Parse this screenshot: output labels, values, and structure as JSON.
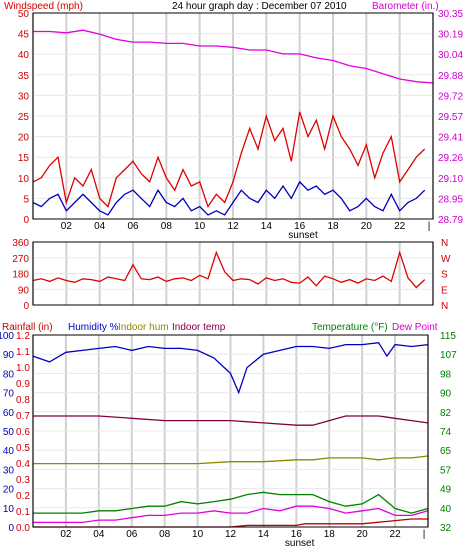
{
  "header": {
    "title": "24 hour graph day : December 07 2010",
    "left_label": "Windspeed (mph)",
    "right_label": "Barometer (in.)"
  },
  "colors": {
    "wind_speed": "#e00000",
    "wind_avg": "#0000c0",
    "barometer": "#e000e0",
    "direction": "#e00000",
    "humidity": "#0000c0",
    "indoor_hum": "#8a8a00",
    "indoor_temp": "#800040",
    "temperature": "#008000",
    "dew_point": "#e000e0",
    "rainfall": "#c00000",
    "grid": "#d0d0d0",
    "frame": "#000000"
  },
  "chart_data": [
    {
      "type": "line",
      "panel": "wind_barometer",
      "x_ticks": [
        "02",
        "04",
        "06",
        "08",
        "10",
        "12",
        "14",
        "16",
        "18",
        "20",
        "22"
      ],
      "x_extra_label": "sunset",
      "xlim": [
        0,
        24
      ],
      "left_axis": {
        "label": "Windspeed (mph)",
        "ticks": [
          "0",
          "5",
          "10",
          "15",
          "20",
          "25",
          "30",
          "35",
          "40",
          "45",
          "50"
        ],
        "lim": [
          0,
          50
        ]
      },
      "right_axis": {
        "label": "Barometer (in.)",
        "ticks": [
          "28.79",
          "28.95",
          "29.10",
          "29.26",
          "29.41",
          "29.57",
          "29.72",
          "29.88",
          "30.04",
          "30.19",
          "30.35"
        ],
        "lim": [
          28.79,
          30.35
        ]
      },
      "series": [
        {
          "key": "wind_speed",
          "axis": "left",
          "x": [
            0,
            0.5,
            1,
            1.5,
            2,
            2.5,
            3,
            3.5,
            4,
            4.5,
            5,
            5.5,
            6,
            6.5,
            7,
            7.5,
            8,
            8.5,
            9,
            9.5,
            10,
            10.5,
            11,
            11.5,
            12,
            12.5,
            13,
            13.5,
            14,
            14.5,
            15,
            15.5,
            16,
            16.5,
            17,
            17.5,
            18,
            18.5,
            19,
            19.5,
            20,
            20.5,
            21,
            21.5,
            22,
            22.5,
            23,
            23.5
          ],
          "values": [
            9,
            10,
            13,
            15,
            4,
            10,
            8,
            12,
            5,
            3,
            10,
            12,
            14,
            11,
            9,
            15,
            10,
            7,
            12,
            8,
            9,
            3,
            6,
            4,
            9,
            16,
            22,
            17,
            25,
            19,
            22,
            14,
            26,
            20,
            24,
            17,
            25,
            20,
            17,
            13,
            18,
            10,
            16,
            20,
            9,
            12,
            15,
            17
          ]
        },
        {
          "key": "wind_avg",
          "axis": "left",
          "x": [
            0,
            0.5,
            1,
            1.5,
            2,
            2.5,
            3,
            3.5,
            4,
            4.5,
            5,
            5.5,
            6,
            6.5,
            7,
            7.5,
            8,
            8.5,
            9,
            9.5,
            10,
            10.5,
            11,
            11.5,
            12,
            12.5,
            13,
            13.5,
            14,
            14.5,
            15,
            15.5,
            16,
            16.5,
            17,
            17.5,
            18,
            18.5,
            19,
            19.5,
            20,
            20.5,
            21,
            21.5,
            22,
            22.5,
            23,
            23.5
          ],
          "values": [
            4,
            3,
            5,
            6,
            2,
            4,
            6,
            4,
            2,
            1,
            4,
            6,
            7,
            5,
            3,
            7,
            4,
            3,
            5,
            2,
            3,
            1,
            2,
            1,
            4,
            7,
            5,
            4,
            7,
            5,
            8,
            5,
            9,
            7,
            8,
            6,
            7,
            5,
            2,
            3,
            5,
            3,
            2,
            6,
            2,
            4,
            5,
            7
          ]
        },
        {
          "key": "barometer",
          "axis": "right",
          "x": [
            0,
            1,
            2,
            3,
            4,
            5,
            6,
            7,
            8,
            9,
            10,
            11,
            12,
            13,
            14,
            15,
            16,
            17,
            18,
            19,
            20,
            21,
            22,
            23,
            24
          ],
          "values": [
            30.21,
            30.21,
            30.2,
            30.22,
            30.19,
            30.15,
            30.13,
            30.13,
            30.12,
            30.12,
            30.1,
            30.1,
            30.09,
            30.07,
            30.07,
            30.04,
            30.04,
            30.01,
            29.99,
            29.95,
            29.93,
            29.89,
            29.85,
            29.83,
            29.82
          ]
        }
      ]
    },
    {
      "type": "line",
      "panel": "wind_direction",
      "xlim": [
        0,
        24
      ],
      "left_axis": {
        "ticks": [
          "0",
          "90",
          "180",
          "270",
          "360"
        ],
        "lim": [
          0,
          360
        ]
      },
      "right_axis": {
        "ticks": [
          "N",
          "E",
          "S",
          "W",
          "N"
        ]
      },
      "series": [
        {
          "key": "direction",
          "axis": "left",
          "x": [
            0,
            0.5,
            1,
            1.5,
            2,
            2.5,
            3,
            3.5,
            4,
            4.5,
            5,
            5.5,
            6,
            6.5,
            7,
            7.5,
            8,
            8.5,
            9,
            9.5,
            10,
            10.5,
            11,
            11.5,
            12,
            12.5,
            13,
            13.5,
            14,
            14.5,
            15,
            15.5,
            16,
            16.5,
            17,
            17.5,
            18,
            18.5,
            19,
            19.5,
            20,
            20.5,
            21,
            21.5,
            22,
            22.5,
            23,
            23.5
          ],
          "values": [
            140,
            150,
            135,
            155,
            140,
            130,
            150,
            145,
            135,
            160,
            150,
            140,
            230,
            150,
            145,
            160,
            135,
            150,
            155,
            140,
            170,
            150,
            300,
            190,
            140,
            150,
            145,
            120,
            155,
            140,
            150,
            130,
            125,
            160,
            110,
            165,
            150,
            130,
            145,
            125,
            150,
            140,
            165,
            135,
            300,
            155,
            100,
            145
          ]
        }
      ]
    },
    {
      "type": "line",
      "panel": "temperature_humidity",
      "header": {
        "rainfall": "Rainfall (in)",
        "humidity": "Humidity %",
        "indoor_hum": "Indoor hum",
        "indoor_temp": "Indoor temp",
        "temperature": "Temperature (°F)",
        "dew_point": "Dew Point"
      },
      "x_ticks": [
        "02",
        "04",
        "06",
        "08",
        "10",
        "12",
        "14",
        "16",
        "18",
        "20",
        "22"
      ],
      "x_extra_label": "sunset",
      "xlim": [
        0,
        24
      ],
      "rain_axis": {
        "ticks": [
          "0.0",
          "0.1",
          "0.2",
          "0.3",
          "0.4",
          "0.5",
          "0.6",
          "0.7",
          "0.8",
          "0.9",
          "1.0",
          "1.1",
          "1.2"
        ]
      },
      "humidity_axis": {
        "ticks": [
          "0",
          "10",
          "20",
          "30",
          "40",
          "50",
          "60",
          "70",
          "80",
          "90",
          "100"
        ],
        "lim": [
          0,
          100
        ]
      },
      "temp_axis": {
        "ticks": [
          "32",
          "40",
          "49",
          "57",
          "65",
          "74",
          "82",
          "90",
          "98",
          "107",
          "115"
        ],
        "lim": [
          32,
          115
        ]
      },
      "series": [
        {
          "key": "humidity",
          "axis": "humidity",
          "x": [
            0,
            1,
            2,
            3,
            4,
            5,
            6,
            7,
            8,
            9,
            10,
            11,
            12,
            12.5,
            13,
            14,
            15,
            16,
            17,
            18,
            19,
            20,
            21,
            21.5,
            22,
            23,
            24
          ],
          "values": [
            89,
            86,
            91,
            92,
            93,
            94,
            92,
            94,
            93,
            93,
            92,
            88,
            80,
            70,
            83,
            90,
            92,
            94,
            94,
            93,
            95,
            95,
            96,
            89,
            95,
            94,
            95
          ]
        },
        {
          "key": "indoor_temp",
          "axis": "temp",
          "x": [
            0,
            2,
            4,
            6,
            8,
            10,
            12,
            14,
            16,
            17,
            18,
            19,
            20,
            21,
            22,
            23,
            24
          ],
          "values": [
            80,
            80,
            80,
            79,
            78,
            78,
            78,
            77,
            76,
            76,
            78,
            80,
            80,
            80,
            79,
            78,
            77
          ]
        },
        {
          "key": "indoor_hum",
          "axis": "humidity",
          "x": [
            0,
            2,
            4,
            6,
            8,
            10,
            12,
            14,
            16,
            17,
            18,
            19,
            20,
            21,
            22,
            23,
            24
          ],
          "values": [
            33,
            33,
            33,
            33,
            33,
            33,
            34,
            34,
            35,
            35,
            36,
            36,
            36,
            35,
            36,
            36,
            37
          ]
        },
        {
          "key": "temperature",
          "axis": "temp",
          "x": [
            0,
            1,
            2,
            3,
            4,
            5,
            6,
            7,
            8,
            9,
            10,
            11,
            12,
            13,
            14,
            15,
            16,
            17,
            18,
            19,
            20,
            21,
            22,
            23,
            24
          ],
          "values": [
            38,
            38,
            38,
            38,
            39,
            39,
            40,
            41,
            41,
            43,
            42,
            43,
            44,
            46,
            47,
            46,
            46,
            46,
            43,
            41,
            42,
            46,
            40,
            38,
            40
          ]
        },
        {
          "key": "dew_point",
          "axis": "temp",
          "x": [
            0,
            1,
            2,
            3,
            4,
            5,
            6,
            7,
            8,
            9,
            10,
            11,
            12,
            13,
            14,
            15,
            16,
            17,
            18,
            19,
            20,
            21,
            22,
            23,
            24
          ],
          "values": [
            34,
            34,
            34,
            34,
            35,
            35,
            36,
            37,
            37,
            38,
            38,
            39,
            38,
            38,
            40,
            39,
            41,
            41,
            40,
            38,
            39,
            40,
            37,
            37,
            39
          ]
        },
        {
          "key": "rainfall",
          "axis": "rain",
          "x": [
            0,
            12,
            13,
            14,
            16,
            16.5,
            17,
            20,
            21,
            22,
            23,
            24
          ],
          "values": [
            0.0,
            0.0,
            0.01,
            0.01,
            0.01,
            0.02,
            0.02,
            0.02,
            0.03,
            0.04,
            0.05,
            0.05
          ]
        }
      ]
    }
  ]
}
